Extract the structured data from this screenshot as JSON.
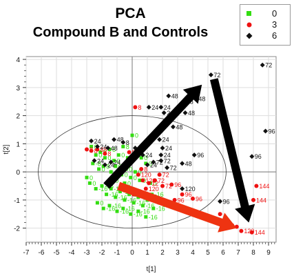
{
  "chart_data": {
    "type": "scatter",
    "title": "PCA",
    "subtitle": "Compound B and Controls",
    "xlabel": "t[1]",
    "ylabel": "t[2]",
    "xlim": [
      -7,
      9.5
    ],
    "ylim": [
      -2.5,
      4.1
    ],
    "xticks": [
      "-7",
      "-6",
      "-5",
      "-4",
      "-3",
      "-2",
      "-1",
      "0",
      "1",
      "2",
      "3",
      "4",
      "5",
      "6",
      "7",
      "8",
      "9"
    ],
    "yticks": [
      "-2",
      "-1",
      "0",
      "1",
      "2",
      "3",
      "4"
    ],
    "grid": true,
    "legend_position": "top-right",
    "colors": {
      "g0": "#33dd11",
      "g3": "#ee1111",
      "g6": "#111111",
      "arrow_black": "#000000",
      "arrow_red": "#ee3311"
    },
    "series": [
      {
        "name": "0",
        "marker": "square",
        "color": "#33dd11",
        "points": [
          {
            "x": -2.7,
            "y": 0.9,
            "label": "0"
          },
          {
            "x": -2.4,
            "y": 0.6,
            "label": "0"
          },
          {
            "x": -2.1,
            "y": 0.7,
            "label": "0"
          },
          {
            "x": -1.8,
            "y": 0.5,
            "label": "0"
          },
          {
            "x": -1.5,
            "y": 0.8,
            "label": "8"
          },
          {
            "x": -1.2,
            "y": 0.4,
            "label": "0"
          },
          {
            "x": -0.9,
            "y": 0.6,
            "label": "0"
          },
          {
            "x": -0.6,
            "y": 0.9,
            "label": "8"
          },
          {
            "x": -0.3,
            "y": 0.5,
            "label": "0"
          },
          {
            "x": 0.0,
            "y": 1.3,
            "label": "0"
          },
          {
            "x": 0.3,
            "y": 0.8,
            "label": "0"
          },
          {
            "x": 0.6,
            "y": 0.5,
            "label": "0"
          },
          {
            "x": -2.6,
            "y": 0.3,
            "label": "-8"
          },
          {
            "x": -2.2,
            "y": 0.1,
            "label": "0"
          },
          {
            "x": -1.9,
            "y": 0.2,
            "label": "8"
          },
          {
            "x": -1.4,
            "y": 0.0,
            "label": "-0"
          },
          {
            "x": -1.1,
            "y": 0.2,
            "label": "0"
          },
          {
            "x": -0.7,
            "y": -0.1,
            "label": "0"
          },
          {
            "x": -0.4,
            "y": 0.1,
            "label": "0"
          },
          {
            "x": -0.1,
            "y": -0.2,
            "label": "0"
          },
          {
            "x": 0.2,
            "y": 0.0,
            "label": "0"
          },
          {
            "x": 0.5,
            "y": -0.3,
            "label": "0"
          },
          {
            "x": -2.8,
            "y": -0.4,
            "label": "0"
          },
          {
            "x": -2.4,
            "y": -0.6,
            "label": "-16"
          },
          {
            "x": -2.0,
            "y": -0.5,
            "label": "-16"
          },
          {
            "x": -1.7,
            "y": -0.8,
            "label": "-16"
          },
          {
            "x": -1.4,
            "y": -0.6,
            "label": "-16"
          },
          {
            "x": -1.1,
            "y": -0.9,
            "label": "-16"
          },
          {
            "x": -0.8,
            "y": -0.7,
            "label": "-16"
          },
          {
            "x": -0.5,
            "y": -1.0,
            "label": "-16"
          },
          {
            "x": -0.2,
            "y": -0.8,
            "label": "-16"
          },
          {
            "x": 0.1,
            "y": -1.1,
            "label": "-16"
          },
          {
            "x": 0.4,
            "y": -0.9,
            "label": "-16"
          },
          {
            "x": 0.7,
            "y": -1.2,
            "label": "-16"
          },
          {
            "x": 1.0,
            "y": -1.0,
            "label": "-16"
          },
          {
            "x": 1.3,
            "y": -0.8,
            "label": "-16"
          },
          {
            "x": -2.3,
            "y": -1.1,
            "label": "0"
          },
          {
            "x": -1.9,
            "y": -1.3,
            "label": "-16"
          },
          {
            "x": -1.5,
            "y": -1.2,
            "label": "-16"
          },
          {
            "x": -1.0,
            "y": -1.4,
            "label": "-16"
          },
          {
            "x": -0.6,
            "y": -1.3,
            "label": "-16"
          },
          {
            "x": -0.1,
            "y": -1.5,
            "label": "-16"
          },
          {
            "x": 0.4,
            "y": -1.4,
            "label": "-16"
          },
          {
            "x": 0.9,
            "y": -1.6,
            "label": "-16"
          },
          {
            "x": 1.4,
            "y": -1.3,
            "label": "-16"
          },
          {
            "x": 1.8,
            "y": -1.1,
            "label": "-16"
          },
          {
            "x": -3.0,
            "y": -0.2,
            "label": "0"
          },
          {
            "x": 1.2,
            "y": -0.4,
            "label": "0"
          },
          {
            "x": 0.9,
            "y": 0.3,
            "label": "0"
          },
          {
            "x": -0.5,
            "y": -0.4,
            "label": "0"
          },
          {
            "x": -1.3,
            "y": -0.3,
            "label": "0"
          }
        ]
      },
      {
        "name": "3",
        "marker": "circle",
        "color": "#ee1111",
        "points": [
          {
            "x": 0.2,
            "y": 2.3,
            "label": "8"
          },
          {
            "x": -3.0,
            "y": 0.8,
            "label": "8"
          },
          {
            "x": -2.7,
            "y": 0.75,
            "label": "8"
          },
          {
            "x": -2.3,
            "y": 0.8,
            "label": "88"
          },
          {
            "x": -1.8,
            "y": 0.65,
            "label": "8"
          },
          {
            "x": -0.2,
            "y": 0.7,
            "label": "8"
          },
          {
            "x": 0.6,
            "y": 0.1,
            "label": "8"
          },
          {
            "x": 0.4,
            "y": -0.1,
            "label": "120"
          },
          {
            "x": 0.7,
            "y": -0.3,
            "label": "120"
          },
          {
            "x": 0.9,
            "y": -0.6,
            "label": "120"
          },
          {
            "x": 1.1,
            "y": -0.4,
            "label": "12"
          },
          {
            "x": 0.1,
            "y": -0.8,
            "label": "120"
          },
          {
            "x": 1.5,
            "y": -0.3,
            "label": "72"
          },
          {
            "x": 1.8,
            "y": -0.1,
            "label": "72"
          },
          {
            "x": 2.0,
            "y": -0.5,
            "label": "72"
          },
          {
            "x": 2.6,
            "y": -0.45,
            "label": "96"
          },
          {
            "x": 2.8,
            "y": -1.0,
            "label": "96"
          },
          {
            "x": 3.3,
            "y": -0.8,
            "label": "96"
          },
          {
            "x": 4.0,
            "y": -0.95,
            "label": "96"
          },
          {
            "x": 8.2,
            "y": -0.5,
            "label": "144"
          },
          {
            "x": 8.0,
            "y": -1.0,
            "label": "144"
          },
          {
            "x": 7.2,
            "y": -2.1,
            "label": "120"
          },
          {
            "x": 7.9,
            "y": -2.15,
            "label": "144"
          },
          {
            "x": 6.6,
            "y": -1.9,
            "label": ""
          },
          {
            "x": 6.0,
            "y": -1.85,
            "label": ""
          },
          {
            "x": 6.9,
            "y": -1.95,
            "label": ""
          },
          {
            "x": 5.8,
            "y": -1.5,
            "label": ""
          }
        ]
      },
      {
        "name": "6",
        "marker": "diamond",
        "color": "#111111",
        "points": [
          {
            "x": 5.2,
            "y": 3.45,
            "label": "72"
          },
          {
            "x": 8.6,
            "y": 3.8,
            "label": "72"
          },
          {
            "x": 2.4,
            "y": 2.7,
            "label": "48"
          },
          {
            "x": 3.4,
            "y": 2.5,
            "label": "48"
          },
          {
            "x": 3.5,
            "y": 2.1,
            "label": "48"
          },
          {
            "x": 1.1,
            "y": 2.3,
            "label": "24"
          },
          {
            "x": 1.9,
            "y": 2.3,
            "label": "24"
          },
          {
            "x": 2.1,
            "y": 2.1,
            "label": "24"
          },
          {
            "x": 2.7,
            "y": 1.6,
            "label": "48"
          },
          {
            "x": 8.8,
            "y": 1.45,
            "label": "96"
          },
          {
            "x": 7.9,
            "y": 0.55,
            "label": "96"
          },
          {
            "x": 4.1,
            "y": 0.6,
            "label": "96"
          },
          {
            "x": 3.3,
            "y": 0.3,
            "label": "48"
          },
          {
            "x": 2.3,
            "y": 0.15,
            "label": "72"
          },
          {
            "x": 1.9,
            "y": 0.4,
            "label": "72"
          },
          {
            "x": 1.4,
            "y": 0.35,
            "label": "72"
          },
          {
            "x": 2.0,
            "y": 0.85,
            "label": "24"
          },
          {
            "x": 1.8,
            "y": 1.15,
            "label": "24"
          },
          {
            "x": 1.9,
            "y": 0.6,
            "label": "24"
          },
          {
            "x": 1.0,
            "y": 0.25,
            "label": "24"
          },
          {
            "x": -2.7,
            "y": 1.1,
            "label": "24"
          },
          {
            "x": -2.3,
            "y": 0.9,
            "label": "24"
          },
          {
            "x": -1.6,
            "y": 0.85,
            "label": "48"
          },
          {
            "x": -1.2,
            "y": 1.15,
            "label": "48"
          },
          {
            "x": -0.6,
            "y": 1.05,
            "label": "8"
          },
          {
            "x": 0.2,
            "y": 0.85,
            "label": "24"
          },
          {
            "x": -1.4,
            "y": 0.35,
            "label": "24"
          },
          {
            "x": 0.7,
            "y": 0.6,
            "label": "24"
          },
          {
            "x": 5.8,
            "y": -1.05,
            "label": "96"
          },
          {
            "x": -2.5,
            "y": 0.4,
            "label": "24"
          },
          {
            "x": -1.8,
            "y": 0.25,
            "label": "24"
          },
          {
            "x": 3.3,
            "y": -0.6,
            "label": "120"
          },
          {
            "x": 4.2,
            "y": 2.6,
            "label": "48"
          }
        ]
      }
    ],
    "ellipse": {
      "cx": 0.0,
      "cy": 0.0,
      "rx": 6.2,
      "ry": 2.0
    },
    "arrows": [
      {
        "color": "#000000",
        "from": [
          -1.7,
          -0.5
        ],
        "to": [
          4.6,
          3.1
        ]
      },
      {
        "color": "#000000",
        "from": [
          5.4,
          3.3
        ],
        "to": [
          7.7,
          -1.8
        ]
      },
      {
        "color": "#ee3311",
        "from": [
          -0.9,
          -0.5
        ],
        "to": [
          6.9,
          -2.0
        ]
      }
    ]
  },
  "legend": [
    {
      "label": "0",
      "symbol": "square",
      "color": "#33dd11"
    },
    {
      "label": "3",
      "symbol": "circle",
      "color": "#ee1111"
    },
    {
      "label": "6",
      "symbol": "diamond",
      "color": "#111111"
    }
  ]
}
